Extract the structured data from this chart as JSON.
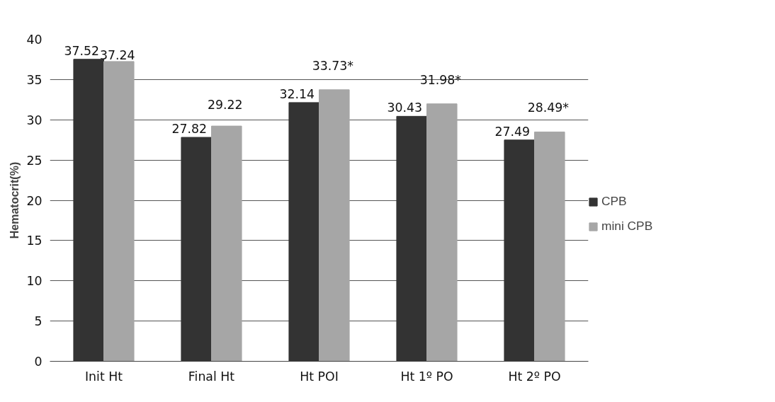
{
  "chart_data": {
    "type": "bar",
    "ylabel": "Hematocrit(%)",
    "categories": [
      "Init Ht",
      "Final Ht",
      "Ht POI",
      "Ht 1º PO",
      "Ht 2º PO"
    ],
    "series": [
      {
        "name": "CPB",
        "color": "#333333",
        "values": [
          37.52,
          27.82,
          32.14,
          30.43,
          27.49
        ],
        "value_labels": [
          "37.52",
          "27.82",
          "32.14",
          "30.43",
          "27.49"
        ]
      },
      {
        "name": "mini CPB",
        "color": "#a6a6a6",
        "values": [
          37.24,
          29.22,
          33.73,
          31.98,
          28.49
        ],
        "value_labels": [
          "37.24",
          "29.22",
          "33.73*",
          "31.98*",
          "28.49*"
        ]
      }
    ],
    "ylim": [
      0,
      40
    ],
    "yticks": [
      0,
      5,
      10,
      15,
      20,
      25,
      30,
      35,
      40
    ],
    "grid": "y",
    "legend": "right"
  }
}
